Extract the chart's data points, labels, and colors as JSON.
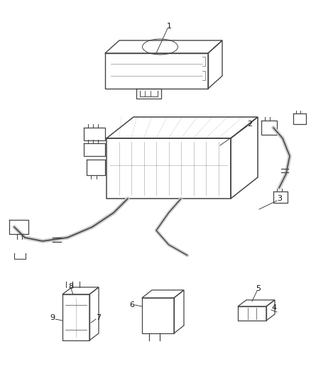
{
  "bg_color": "#ffffff",
  "line_color": "#444444",
  "text_color": "#111111",
  "fig_width": 4.38,
  "fig_height": 5.33,
  "dpi": 100
}
